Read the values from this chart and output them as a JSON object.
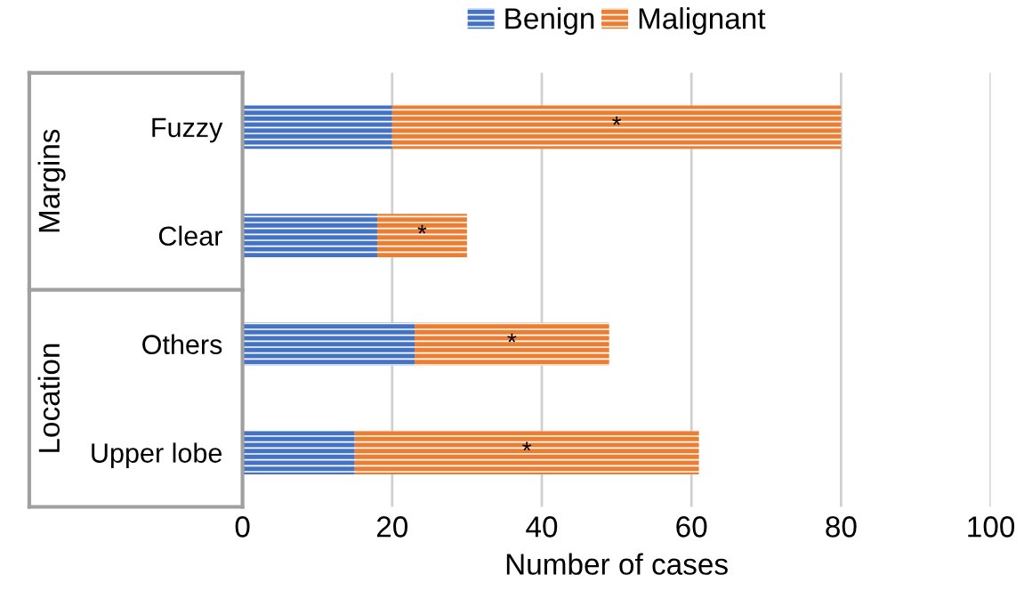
{
  "chart_data": {
    "type": "bar",
    "orientation": "horizontal",
    "stacked": true,
    "categories": [
      "Fuzzy",
      "Clear",
      "Others",
      "Upper lobe"
    ],
    "series": [
      {
        "name": "Benign",
        "color": "#4472c4",
        "values": [
          20,
          18,
          23,
          15
        ]
      },
      {
        "name": "Malignant",
        "color": "#ed7d31",
        "values": [
          60,
          12,
          26,
          46
        ]
      }
    ],
    "xlabel": "Number of cases",
    "xlim": [
      0,
      100
    ],
    "xticks": [
      0,
      20,
      40,
      60,
      80,
      100
    ],
    "grid": "x",
    "legend": "top",
    "annotations": [
      "*",
      "*",
      "*",
      "*",
      "Margins",
      "Location"
    ]
  }
}
